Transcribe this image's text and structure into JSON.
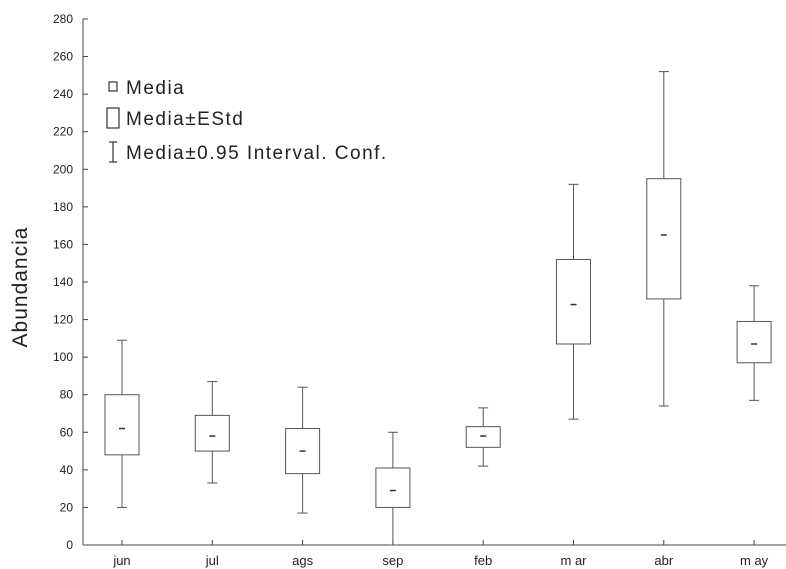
{
  "chart_data": {
    "type": "box",
    "title": "",
    "xlabel": "",
    "ylabel": "Abundancia",
    "ylim": [
      0,
      280
    ],
    "yticks": [
      0,
      20,
      40,
      60,
      80,
      100,
      120,
      140,
      160,
      180,
      200,
      220,
      240,
      260,
      280
    ],
    "grid": false,
    "legend_position": "top-left",
    "legend": [
      {
        "symbol": "mean",
        "label": "Media"
      },
      {
        "symbol": "box",
        "label": "Media±EStd"
      },
      {
        "symbol": "whisker",
        "label": "Media±0.95 Interval. Conf."
      }
    ],
    "categories": [
      "jun",
      "jul",
      "ags",
      "sep",
      "feb",
      "m ar",
      "abr",
      "m ay"
    ],
    "boxes": [
      {
        "category": "jun",
        "mean": 62,
        "box_low": 48,
        "box_high": 80,
        "whisker_low": 20,
        "whisker_high": 109
      },
      {
        "category": "jul",
        "mean": 58,
        "box_low": 50,
        "box_high": 69,
        "whisker_low": 33,
        "whisker_high": 87
      },
      {
        "category": "ags",
        "mean": 50,
        "box_low": 38,
        "box_high": 62,
        "whisker_low": 17,
        "whisker_high": 84
      },
      {
        "category": "sep",
        "mean": 29,
        "box_low": 20,
        "box_high": 41,
        "whisker_low": 0,
        "whisker_high": 60
      },
      {
        "category": "feb",
        "mean": 58,
        "box_low": 52,
        "box_high": 63,
        "whisker_low": 42,
        "whisker_high": 73
      },
      {
        "category": "m ar",
        "mean": 128,
        "box_low": 107,
        "box_high": 152,
        "whisker_low": 67,
        "whisker_high": 192
      },
      {
        "category": "abr",
        "mean": 165,
        "box_low": 131,
        "box_high": 195,
        "whisker_low": 74,
        "whisker_high": 252
      },
      {
        "category": "m ay",
        "mean": 107,
        "box_low": 97,
        "box_high": 119,
        "whisker_low": 77,
        "whisker_high": 138
      }
    ]
  },
  "colors": {
    "axis": "#444444",
    "box_stroke": "#555555",
    "mean_mark": "#333333"
  }
}
